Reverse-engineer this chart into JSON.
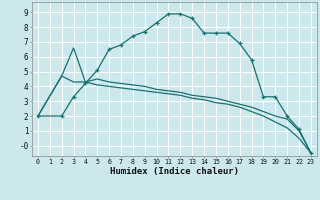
{
  "xlabel": "Humidex (Indice chaleur)",
  "xlim": [
    -0.5,
    23.5
  ],
  "ylim": [
    -0.7,
    9.7
  ],
  "bg_color": "#cce8ec",
  "grid_color": "#ffffff",
  "line_color": "#1a7070",
  "lines": [
    {
      "x": [
        0,
        2,
        3,
        4,
        5,
        6,
        7,
        8,
        9,
        10,
        11,
        12,
        13,
        14,
        15,
        16,
        17,
        18,
        19,
        20,
        21,
        22,
        23
      ],
      "y": [
        2.0,
        2.0,
        3.3,
        4.2,
        5.1,
        6.5,
        6.8,
        7.4,
        7.7,
        8.3,
        8.9,
        8.9,
        8.6,
        7.6,
        7.6,
        7.6,
        6.9,
        5.8,
        3.3,
        3.3,
        2.0,
        1.1,
        -0.5
      ],
      "marker": true
    },
    {
      "x": [
        0,
        2,
        3,
        4,
        5,
        6,
        7,
        8,
        9,
        10,
        11,
        12,
        13,
        14,
        15,
        16,
        17,
        18,
        19,
        20,
        21,
        22,
        23
      ],
      "y": [
        2.0,
        4.7,
        6.6,
        4.3,
        4.5,
        4.3,
        4.2,
        4.1,
        4.0,
        3.8,
        3.7,
        3.6,
        3.4,
        3.3,
        3.2,
        3.0,
        2.8,
        2.6,
        2.3,
        2.0,
        1.8,
        1.0,
        -0.5
      ],
      "marker": false
    },
    {
      "x": [
        0,
        2,
        3,
        4,
        5,
        6,
        7,
        8,
        9,
        10,
        11,
        12,
        13,
        14,
        15,
        16,
        17,
        18,
        19,
        20,
        21,
        22,
        23
      ],
      "y": [
        2.0,
        4.7,
        4.3,
        4.3,
        4.1,
        4.0,
        3.9,
        3.8,
        3.7,
        3.6,
        3.5,
        3.4,
        3.2,
        3.1,
        2.9,
        2.8,
        2.6,
        2.3,
        2.0,
        1.6,
        1.2,
        0.5,
        -0.5
      ],
      "marker": false
    }
  ],
  "xticks": [
    0,
    1,
    2,
    3,
    4,
    5,
    6,
    7,
    8,
    9,
    10,
    11,
    12,
    13,
    14,
    15,
    16,
    17,
    18,
    19,
    20,
    21,
    22,
    23
  ],
  "yticks": [
    0,
    1,
    2,
    3,
    4,
    5,
    6,
    7,
    8,
    9
  ],
  "ytick_labels": [
    "-0",
    "1",
    "2",
    "3",
    "4",
    "5",
    "6",
    "7",
    "8",
    "9"
  ]
}
